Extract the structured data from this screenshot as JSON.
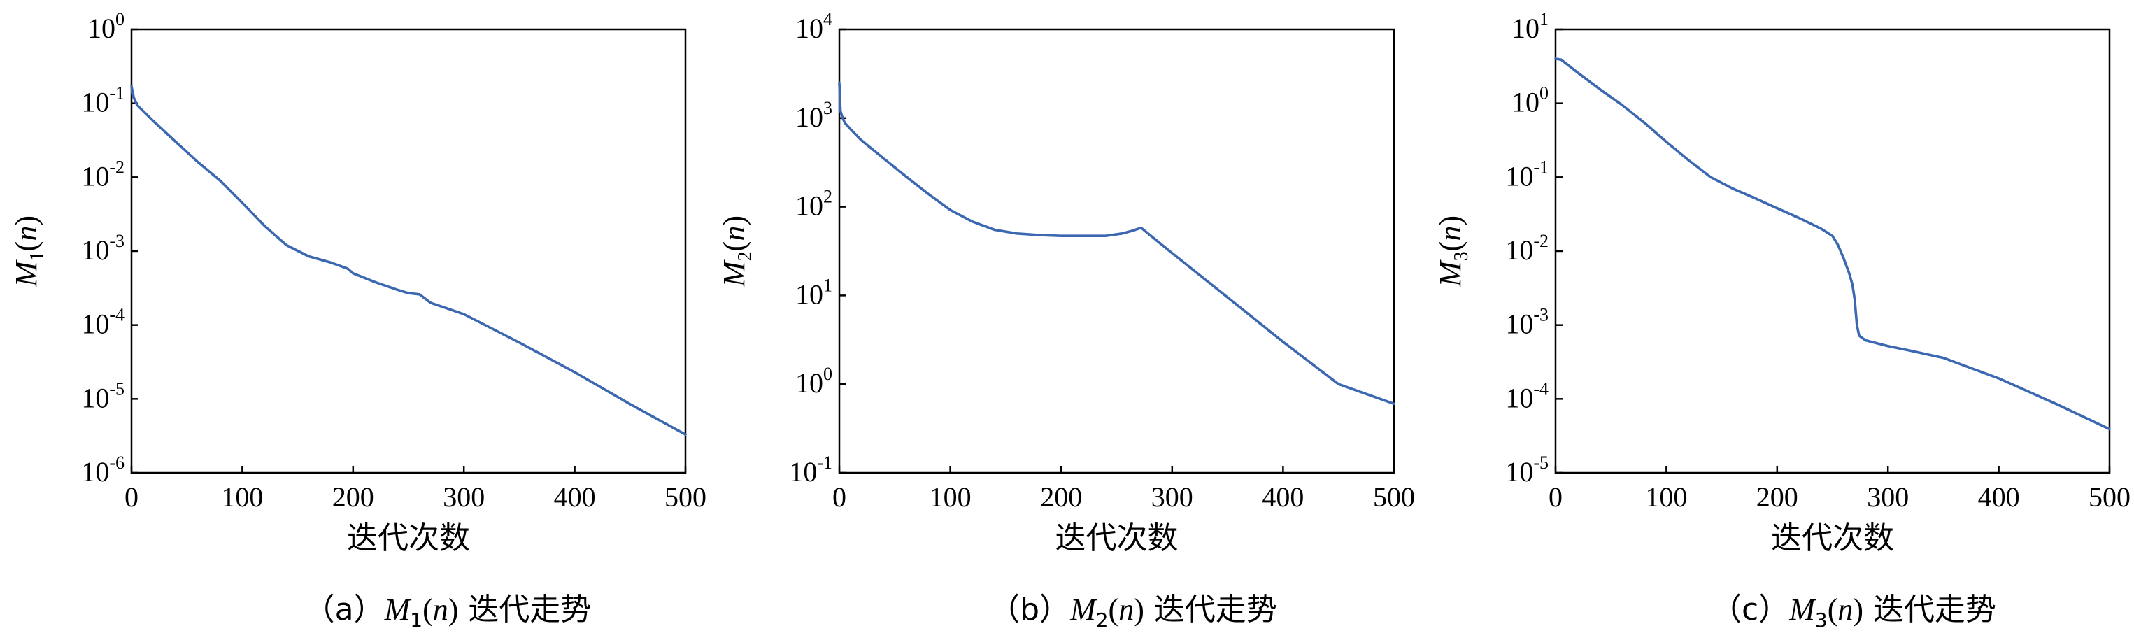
{
  "colors": {
    "line": "#3b68b0",
    "axis": "#000000"
  },
  "chart_data": [
    {
      "type": "line",
      "panel": "a",
      "caption_prefix": "（a）",
      "caption_suffix": " 迭代走势",
      "ylabel": {
        "symbol": "M",
        "subscript": "1",
        "arg": "n"
      },
      "xlabel": "迭代次数",
      "xlim": [
        0,
        500
      ],
      "ylim_log10": [
        -6,
        0
      ],
      "yscale": "log",
      "x_ticks": [
        0,
        100,
        200,
        300,
        400,
        500
      ],
      "y_ticks": [
        {
          "base": "10",
          "exp": "-6"
        },
        {
          "base": "10",
          "exp": "-5"
        },
        {
          "base": "10",
          "exp": "-4"
        },
        {
          "base": "10",
          "exp": "-3"
        },
        {
          "base": "10",
          "exp": "-2"
        },
        {
          "base": "10",
          "exp": "-1"
        },
        {
          "base": "10",
          "exp": "0"
        }
      ],
      "series": [
        {
          "x": [
            0,
            2,
            5,
            10,
            20,
            40,
            60,
            80,
            100,
            120,
            140,
            160,
            180,
            195,
            200,
            220,
            240,
            250,
            260,
            270,
            300,
            350,
            400,
            450,
            500
          ],
          "y": [
            0.17,
            0.12,
            0.095,
            0.08,
            0.057,
            0.03,
            0.016,
            0.009,
            0.0045,
            0.0022,
            0.0012,
            0.00085,
            0.0007,
            0.00058,
            0.0005,
            0.00038,
            0.0003,
            0.00027,
            0.00026,
            0.0002,
            0.00014,
            5.8e-05,
            2.3e-05,
            8.5e-06,
            3.3e-06
          ]
        }
      ]
    },
    {
      "type": "line",
      "panel": "b",
      "caption_prefix": "（b）",
      "caption_suffix": " 迭代走势",
      "ylabel": {
        "symbol": "M",
        "subscript": "2",
        "arg": "n"
      },
      "xlabel": "迭代次数",
      "xlim": [
        0,
        500
      ],
      "ylim_log10": [
        -1,
        4
      ],
      "yscale": "log",
      "x_ticks": [
        0,
        100,
        200,
        300,
        400,
        500
      ],
      "y_ticks": [
        {
          "base": "10",
          "exp": "-1"
        },
        {
          "base": "10",
          "exp": "0"
        },
        {
          "base": "10",
          "exp": "1"
        },
        {
          "base": "10",
          "exp": "2"
        },
        {
          "base": "10",
          "exp": "3"
        },
        {
          "base": "10",
          "exp": "4"
        }
      ],
      "series": [
        {
          "x": [
            0,
            1,
            3,
            5,
            10,
            20,
            40,
            60,
            80,
            100,
            120,
            140,
            160,
            180,
            200,
            220,
            240,
            255,
            265,
            272,
            300,
            350,
            400,
            450,
            500
          ],
          "y": [
            2500,
            1200,
            1000,
            880,
            750,
            560,
            350,
            220,
            140,
            92,
            68,
            55,
            50,
            48,
            47,
            47,
            47,
            50,
            54,
            58,
            30,
            9.5,
            3.0,
            1.0,
            0.6
          ]
        }
      ]
    },
    {
      "type": "line",
      "panel": "c",
      "caption_prefix": "（c）",
      "caption_suffix": " 迭代走势",
      "ylabel": {
        "symbol": "M",
        "subscript": "3",
        "arg": "n"
      },
      "xlabel": "迭代次数",
      "xlim": [
        0,
        500
      ],
      "ylim_log10": [
        -5,
        1
      ],
      "yscale": "log",
      "x_ticks": [
        0,
        100,
        200,
        300,
        400,
        500
      ],
      "y_ticks": [
        {
          "base": "10",
          "exp": "-5"
        },
        {
          "base": "10",
          "exp": "-4"
        },
        {
          "base": "10",
          "exp": "-3"
        },
        {
          "base": "10",
          "exp": "-2"
        },
        {
          "base": "10",
          "exp": "-1"
        },
        {
          "base": "10",
          "exp": "0"
        },
        {
          "base": "10",
          "exp": "1"
        }
      ],
      "series": [
        {
          "x": [
            0,
            5,
            20,
            40,
            60,
            80,
            100,
            120,
            140,
            160,
            180,
            200,
            220,
            240,
            250,
            255,
            260,
            265,
            268,
            270,
            272,
            274,
            276,
            280,
            300,
            320,
            350,
            400,
            450,
            500
          ],
          "y": [
            4.0,
            3.9,
            2.6,
            1.55,
            0.95,
            0.55,
            0.3,
            0.17,
            0.1,
            0.07,
            0.052,
            0.038,
            0.028,
            0.02,
            0.016,
            0.012,
            0.008,
            0.005,
            0.0035,
            0.0022,
            0.001,
            0.00072,
            0.00068,
            0.00062,
            0.00052,
            0.00045,
            0.00036,
            0.00019,
            8.8e-05,
            3.9e-05
          ]
        }
      ]
    }
  ]
}
